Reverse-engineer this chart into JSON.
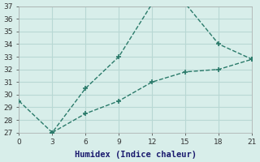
{
  "line1_x": [
    0,
    3,
    6,
    9,
    12,
    15,
    18,
    21
  ],
  "line1_y": [
    29.5,
    27.0,
    30.5,
    33.0,
    37.2,
    37.2,
    34.0,
    32.8
  ],
  "line2_x": [
    3,
    6,
    9,
    12,
    15,
    18,
    21
  ],
  "line2_y": [
    27.0,
    28.5,
    29.5,
    31.0,
    31.8,
    32.0,
    32.8
  ],
  "line_color": "#2a7a6a",
  "linewidth": 1.0,
  "linestyle": "--",
  "marker": "+",
  "marker_size": 5,
  "marker_linewidth": 1.2,
  "xlabel": "Humidex (Indice chaleur)",
  "xlim": [
    0,
    21
  ],
  "ylim": [
    27,
    37
  ],
  "xticks": [
    0,
    3,
    6,
    9,
    12,
    15,
    18,
    21
  ],
  "yticks": [
    27,
    28,
    29,
    30,
    31,
    32,
    33,
    34,
    35,
    36,
    37
  ],
  "bg_color": "#d8eeea",
  "grid_color": "#b8d8d4",
  "tick_fontsize": 6.5,
  "label_fontsize": 7.5,
  "label_color": "#1a1a6e"
}
